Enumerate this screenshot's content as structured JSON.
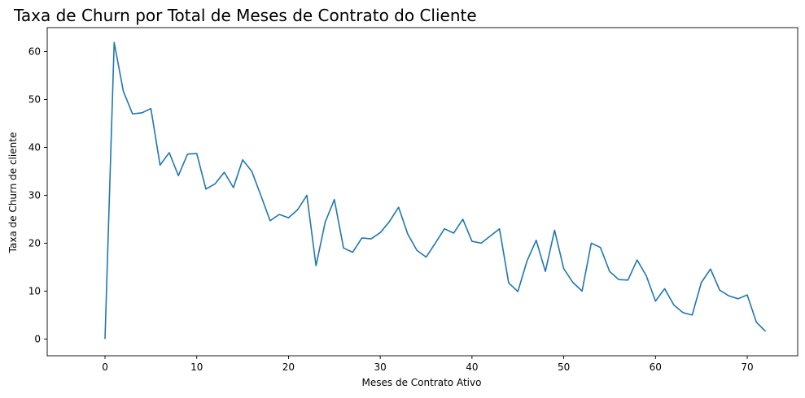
{
  "chart_data": {
    "type": "line",
    "title": "Taxa de Churn por Total de Meses de Contrato do Cliente",
    "xlabel": "Meses de Contrato Ativo",
    "ylabel": "Taxa de Churn de cliente",
    "xlim": [
      -6.3,
      75.5
    ],
    "ylim": [
      -3.5,
      65.0
    ],
    "xticks": [
      0,
      10,
      20,
      30,
      40,
      50,
      60,
      70
    ],
    "yticks": [
      0,
      10,
      20,
      30,
      40,
      50,
      60
    ],
    "grid": false,
    "line_color": "#1f77b4",
    "series": [
      {
        "x": [
          0,
          1,
          2,
          3,
          4,
          5,
          6,
          7,
          8,
          9,
          10,
          11,
          12,
          13,
          14,
          15,
          16,
          17,
          18,
          19,
          20,
          21,
          22,
          23,
          24,
          25,
          26,
          27,
          28,
          29,
          30,
          31,
          32,
          33,
          34,
          35,
          36,
          37,
          38,
          39,
          40,
          41,
          42,
          43,
          44,
          45,
          46,
          47,
          48,
          49,
          50,
          51,
          52,
          53,
          54,
          55,
          56,
          57,
          58,
          59,
          60,
          61,
          62,
          63,
          64,
          65,
          66,
          67,
          68,
          69,
          70,
          71,
          72
        ],
        "y": [
          0,
          61.9,
          51.7,
          47.0,
          47.2,
          48.1,
          36.3,
          38.9,
          34.1,
          38.6,
          38.7,
          31.3,
          32.4,
          34.8,
          31.6,
          37.4,
          35.0,
          29.9,
          24.7,
          26.0,
          25.3,
          27.0,
          30.0,
          15.3,
          24.4,
          29.1,
          19.0,
          18.1,
          21.1,
          20.9,
          22.2,
          24.5,
          27.5,
          21.9,
          18.5,
          17.1,
          20.0,
          23.0,
          22.1,
          25.0,
          20.4,
          20.0,
          21.5,
          23.0,
          11.7,
          9.9,
          16.3,
          20.6,
          14.1,
          22.7,
          14.7,
          11.8,
          10.0,
          20.0,
          19.1,
          14.1,
          12.4,
          12.3,
          16.5,
          13.2,
          7.9,
          10.5,
          7.1,
          5.5,
          5.0,
          11.8,
          14.6,
          10.2,
          9.0,
          8.4,
          9.2,
          3.5,
          1.6
        ]
      }
    ]
  }
}
